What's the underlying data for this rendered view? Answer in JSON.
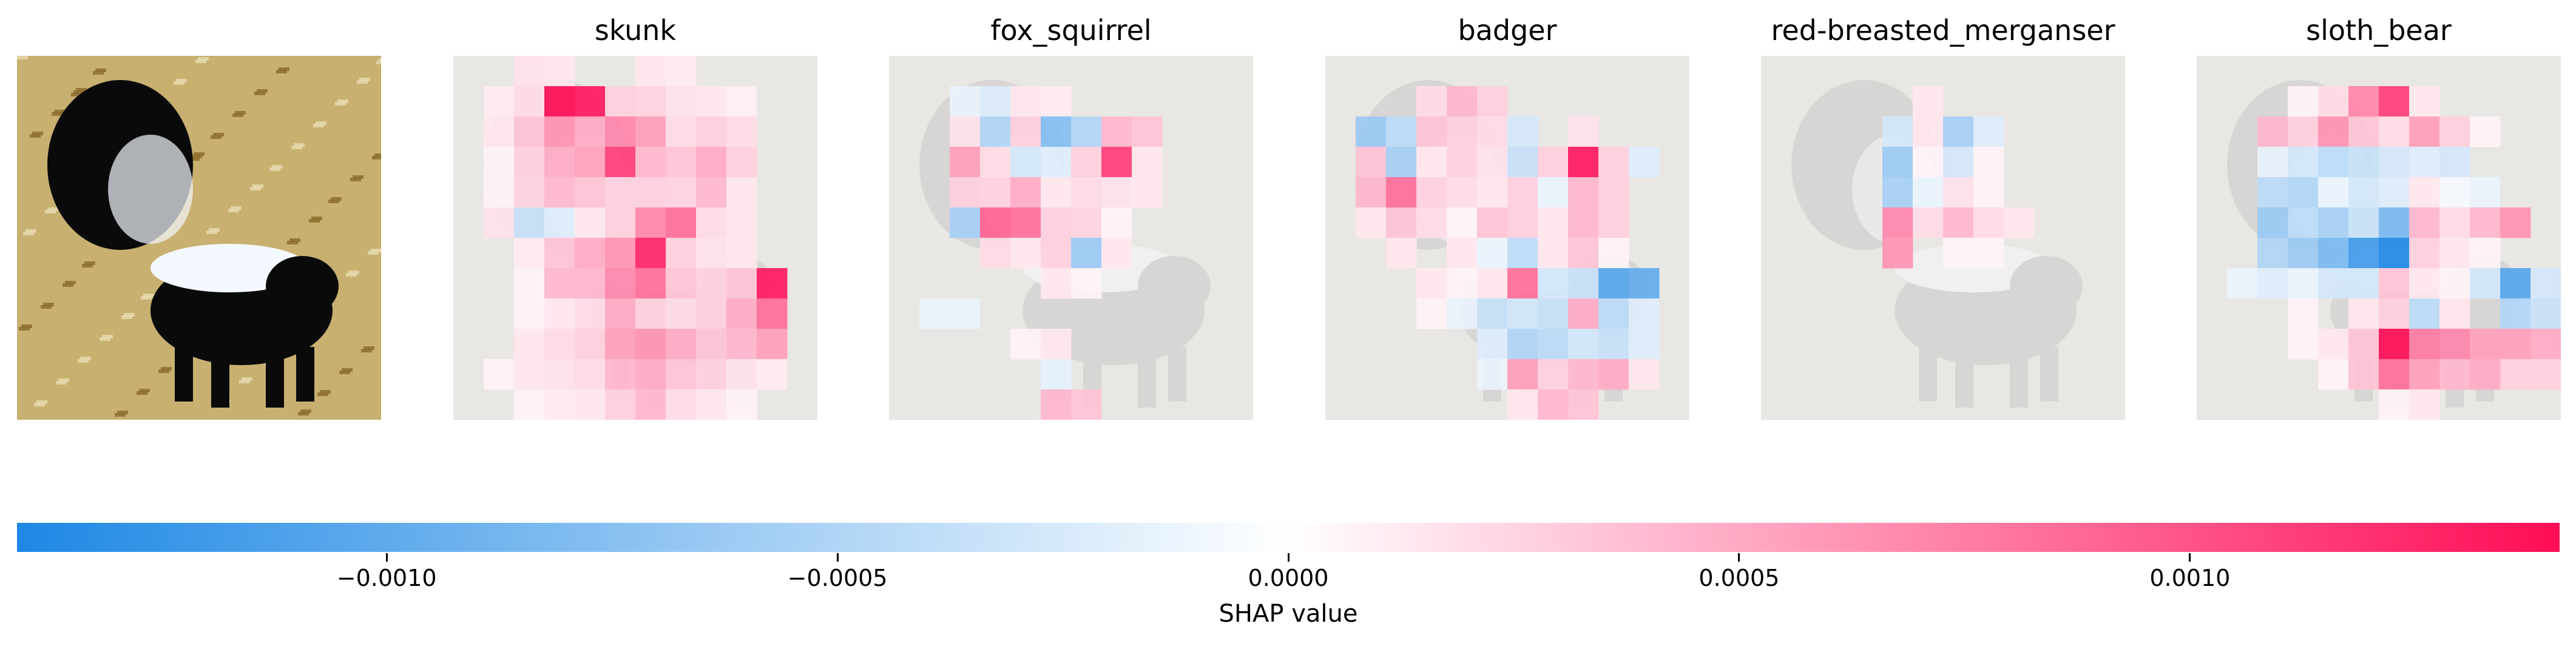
{
  "chart_data": {
    "type": "heatmap",
    "description_free": true,
    "panels": [
      "skunk",
      "fox_squirrel",
      "badger",
      "red-breasted_merganser",
      "sloth_bear"
    ],
    "grid_rows": 12,
    "grid_cols": 12,
    "value_scale": 0.00141,
    "series": [
      {
        "name": "skunk",
        "values": [
          [
            0,
            0,
            0.12,
            0.1,
            0,
            0,
            0.1,
            0.08,
            0,
            0,
            0,
            0
          ],
          [
            0,
            0.08,
            0.15,
            1,
            0.95,
            0.2,
            0.18,
            0.12,
            0.1,
            0.06,
            0,
            0
          ],
          [
            0,
            0.1,
            0.25,
            0.45,
            0.35,
            0.5,
            0.4,
            0.15,
            0.2,
            0.15,
            0,
            0
          ],
          [
            0,
            0.05,
            0.2,
            0.35,
            0.4,
            0.8,
            0.3,
            0.25,
            0.35,
            0.2,
            0,
            0
          ],
          [
            0,
            0.05,
            0.18,
            0.3,
            0.25,
            0.2,
            0.2,
            0.18,
            0.3,
            0.1,
            0,
            0
          ],
          [
            0,
            0.12,
            -0.25,
            -0.15,
            0.1,
            0.2,
            0.5,
            0.6,
            0.15,
            0.1,
            0,
            0
          ],
          [
            0,
            0,
            0.08,
            0.25,
            0.35,
            0.45,
            0.9,
            0.2,
            0.12,
            0.1,
            0,
            0
          ],
          [
            0,
            0,
            0.05,
            0.3,
            0.3,
            0.5,
            0.6,
            0.25,
            0.2,
            0.25,
            0.95,
            0
          ],
          [
            0,
            0,
            0.05,
            0.1,
            0.15,
            0.35,
            0.2,
            0.15,
            0.2,
            0.35,
            0.6,
            0
          ],
          [
            0,
            0,
            0.1,
            0.15,
            0.2,
            0.4,
            0.45,
            0.35,
            0.25,
            0.3,
            0.4,
            0
          ],
          [
            0,
            0.05,
            0.1,
            0.12,
            0.15,
            0.3,
            0.35,
            0.25,
            0.2,
            0.12,
            0.08,
            0
          ],
          [
            0,
            0,
            0.05,
            0.08,
            0.1,
            0.2,
            0.3,
            0.15,
            0.1,
            0.05,
            0,
            0
          ]
        ]
      },
      {
        "name": "fox_squirrel",
        "values": [
          [
            0,
            0,
            0,
            0,
            0,
            0,
            0,
            0,
            0,
            0,
            0,
            0
          ],
          [
            0,
            0,
            -0.1,
            -0.15,
            0.1,
            0.08,
            0,
            0,
            0,
            0,
            0,
            0
          ],
          [
            0,
            0,
            0.12,
            -0.35,
            0.2,
            -0.55,
            -0.35,
            0.3,
            0.25,
            0,
            0,
            0
          ],
          [
            0,
            0,
            0.4,
            0.15,
            -0.2,
            -0.15,
            0.2,
            0.8,
            0.1,
            0,
            0,
            0
          ],
          [
            0,
            0,
            0.2,
            0.2,
            0.35,
            0.1,
            0.15,
            0.12,
            0.1,
            0,
            0,
            0
          ],
          [
            0,
            0,
            -0.4,
            0.65,
            0.6,
            0.2,
            0.18,
            0.05,
            0,
            0,
            0,
            0
          ],
          [
            0,
            0,
            0,
            0.15,
            0.1,
            0.2,
            -0.45,
            0.1,
            0,
            0,
            0,
            0
          ],
          [
            0,
            0,
            0,
            0,
            0,
            0.1,
            0.05,
            0,
            0,
            0,
            0,
            0
          ],
          [
            0,
            -0.1,
            -0.1,
            0,
            0,
            0,
            0,
            0,
            0,
            0,
            0,
            0
          ],
          [
            0,
            0,
            0,
            0,
            0.05,
            0.1,
            0,
            0,
            0,
            0,
            0,
            0
          ],
          [
            0,
            0,
            0,
            0,
            0,
            -0.12,
            0,
            0,
            0,
            0,
            0,
            0
          ],
          [
            0,
            0,
            0,
            0,
            0,
            0.3,
            0.25,
            0,
            0,
            0,
            0,
            0
          ]
        ]
      },
      {
        "name": "badger",
        "values": [
          [
            0,
            0,
            0,
            0,
            0,
            0,
            0,
            0,
            0,
            0,
            0,
            0
          ],
          [
            0,
            0,
            0,
            0.15,
            0.3,
            0.2,
            0,
            0,
            0,
            0,
            0,
            0
          ],
          [
            0,
            -0.45,
            -0.3,
            0.25,
            0.2,
            0.15,
            -0.2,
            0,
            0.12,
            0,
            0,
            0
          ],
          [
            0,
            0.25,
            -0.4,
            0.1,
            0.2,
            0.12,
            -0.25,
            0.2,
            0.95,
            0.2,
            -0.15,
            0
          ],
          [
            0,
            0.3,
            0.6,
            0.2,
            0.15,
            0.1,
            0.2,
            -0.1,
            0.3,
            0.2,
            0,
            0
          ],
          [
            0,
            0.1,
            0.25,
            0.15,
            0.05,
            0.25,
            0.2,
            0.1,
            0.3,
            0.2,
            0,
            0
          ],
          [
            0,
            0,
            0.1,
            0,
            0.1,
            -0.1,
            -0.3,
            0.1,
            0.25,
            0.05,
            0,
            0
          ],
          [
            0,
            0,
            0,
            0.1,
            0.05,
            0.1,
            0.6,
            -0.2,
            -0.25,
            -0.75,
            -0.7,
            0
          ],
          [
            0,
            0,
            0,
            0.05,
            -0.1,
            -0.25,
            -0.2,
            -0.25,
            0.35,
            -0.3,
            -0.15,
            0
          ],
          [
            0,
            0,
            0,
            0,
            0,
            -0.15,
            -0.35,
            -0.3,
            -0.2,
            -0.25,
            -0.15,
            0
          ],
          [
            0,
            0,
            0,
            0,
            0,
            -0.1,
            0.4,
            0.2,
            0.3,
            0.35,
            0.1,
            0
          ],
          [
            0,
            0,
            0,
            0,
            0,
            0,
            0.1,
            0.3,
            0.25,
            0,
            0,
            0
          ]
        ]
      },
      {
        "name": "red-breasted_merganser",
        "values": [
          [
            0,
            0,
            0,
            0,
            0,
            0,
            0,
            0,
            0,
            0,
            0,
            0
          ],
          [
            0,
            0,
            0,
            0,
            0,
            0.1,
            0,
            0,
            0,
            0,
            0,
            0
          ],
          [
            0,
            0,
            0,
            0,
            -0.2,
            0.1,
            -0.4,
            -0.15,
            0,
            0,
            0,
            0
          ],
          [
            0,
            0,
            0,
            0,
            -0.45,
            0.05,
            -0.2,
            0.05,
            0,
            0,
            0,
            0
          ],
          [
            0,
            0,
            0,
            0,
            -0.4,
            -0.1,
            0.12,
            0.05,
            0,
            0,
            0,
            0
          ],
          [
            0,
            0,
            0,
            0,
            0.5,
            0.15,
            0.3,
            0.15,
            0.1,
            0,
            0,
            0
          ],
          [
            0,
            0,
            0,
            0,
            0.45,
            0,
            0.05,
            0.05,
            0,
            0,
            0,
            0
          ],
          [
            0,
            0,
            0,
            0,
            0,
            0,
            0,
            0,
            0,
            0,
            0,
            0
          ],
          [
            0,
            0,
            0,
            0,
            0,
            0,
            0,
            0,
            0,
            0,
            0,
            0
          ],
          [
            0,
            0,
            0,
            0,
            0,
            0,
            0,
            0,
            0,
            0,
            0,
            0
          ],
          [
            0,
            0,
            0,
            0,
            0,
            0,
            0,
            0,
            0,
            0,
            0,
            0
          ],
          [
            0,
            0,
            0,
            0,
            0,
            0,
            0,
            0,
            0,
            0,
            0,
            0
          ]
        ]
      },
      {
        "name": "sloth_bear",
        "values": [
          [
            0,
            0,
            0,
            0,
            0,
            0,
            0,
            0,
            0,
            0,
            0,
            0
          ],
          [
            0,
            0,
            0,
            0.05,
            0.15,
            0.5,
            0.8,
            0.1,
            0,
            0,
            0,
            0
          ],
          [
            0,
            0,
            0.3,
            0.2,
            0.45,
            0.25,
            0.15,
            0.4,
            0.2,
            0.05,
            0,
            0
          ],
          [
            0,
            0,
            -0.1,
            -0.2,
            -0.3,
            -0.25,
            -0.2,
            -0.15,
            -0.2,
            0,
            0,
            0
          ],
          [
            0,
            0,
            -0.3,
            -0.35,
            -0.1,
            -0.2,
            -0.15,
            0.1,
            -0.05,
            -0.1,
            0,
            0
          ],
          [
            0,
            0,
            -0.45,
            -0.3,
            -0.4,
            -0.25,
            -0.6,
            0.3,
            0.15,
            0.3,
            0.45,
            0
          ],
          [
            0,
            0,
            -0.35,
            -0.45,
            -0.6,
            -0.85,
            -1.0,
            0.2,
            0.1,
            0.05,
            0,
            0
          ],
          [
            0,
            -0.1,
            -0.15,
            -0.1,
            -0.2,
            -0.2,
            0.25,
            0.1,
            0.05,
            -0.2,
            -0.75,
            -0.2
          ],
          [
            0,
            0,
            0,
            0.05,
            0,
            0.1,
            0.2,
            -0.3,
            0.1,
            0,
            -0.35,
            -0.25
          ],
          [
            0,
            0,
            0,
            0.05,
            0.1,
            0.25,
            1.0,
            0.55,
            0.5,
            0.4,
            0.4,
            0.35
          ],
          [
            0,
            0,
            0,
            0,
            0.05,
            0.25,
            0.6,
            0.4,
            0.3,
            0.35,
            0.2,
            0.2
          ],
          [
            0,
            0,
            0,
            0,
            0,
            0,
            0.05,
            0.1,
            0,
            0,
            0,
            0
          ]
        ]
      }
    ],
    "colorbar": {
      "label": "SHAP value",
      "min": -0.00141,
      "max": 0.00141,
      "ticks": [
        "−0.0010",
        "−0.0005",
        "0.0000",
        "0.0005",
        "0.0010"
      ],
      "tick_values": [
        -0.001,
        -0.0005,
        0,
        0.0005,
        0.001
      ],
      "negative_color": "#1e88e5",
      "positive_color": "#ff0d57",
      "center_color": "#ffffff"
    }
  }
}
